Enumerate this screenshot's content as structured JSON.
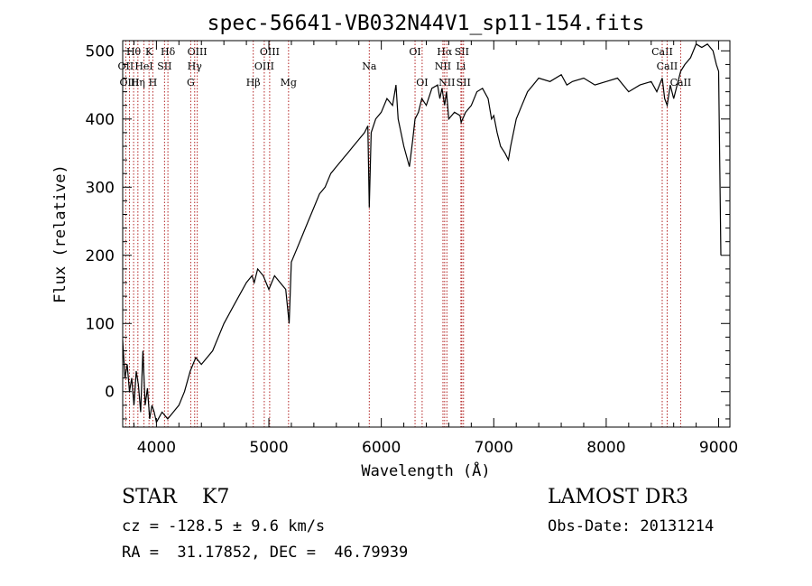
{
  "chart_data": {
    "type": "line",
    "title": "spec-56641-VB032N44V1_sp11-154.fits",
    "xlabel": "Wavelength (Å)",
    "ylabel": "Flux (relative)",
    "xlim": [
      3700,
      9100
    ],
    "ylim": [
      -52,
      515
    ],
    "xticks": [
      4000,
      5000,
      6000,
      7000,
      8000,
      9000
    ],
    "yticks": [
      0,
      100,
      200,
      300,
      400,
      500
    ],
    "grid": false,
    "series": [
      {
        "name": "flux",
        "x": [
          3700,
          3720,
          3740,
          3760,
          3780,
          3800,
          3820,
          3840,
          3860,
          3880,
          3900,
          3920,
          3940,
          3960,
          3980,
          4000,
          4050,
          4100,
          4150,
          4200,
          4250,
          4300,
          4350,
          4400,
          4500,
          4600,
          4700,
          4800,
          4850,
          4870,
          4900,
          4950,
          5000,
          5050,
          5100,
          5150,
          5180,
          5200,
          5250,
          5300,
          5350,
          5400,
          5450,
          5500,
          5550,
          5600,
          5650,
          5700,
          5750,
          5800,
          5850,
          5880,
          5893,
          5910,
          5950,
          6000,
          6050,
          6100,
          6130,
          6150,
          6200,
          6250,
          6280,
          6300,
          6330,
          6360,
          6400,
          6450,
          6500,
          6520,
          6540,
          6563,
          6580,
          6600,
          6650,
          6700,
          6710,
          6750,
          6800,
          6850,
          6900,
          6950,
          6980,
          7000,
          7030,
          7060,
          7100,
          7130,
          7150,
          7200,
          7250,
          7300,
          7350,
          7400,
          7500,
          7600,
          7650,
          7700,
          7800,
          7900,
          8000,
          8100,
          8200,
          8300,
          8400,
          8450,
          8498,
          8520,
          8542,
          8570,
          8600,
          8662,
          8700,
          8750,
          8800,
          8850,
          8900,
          8950,
          8980,
          9000,
          9020
        ],
        "values": [
          75,
          20,
          40,
          0,
          20,
          -20,
          30,
          10,
          -30,
          60,
          -20,
          5,
          -40,
          -20,
          -30,
          -45,
          -30,
          -40,
          -30,
          -20,
          0,
          30,
          50,
          40,
          60,
          100,
          130,
          160,
          170,
          160,
          180,
          170,
          150,
          170,
          160,
          150,
          100,
          190,
          210,
          230,
          250,
          270,
          290,
          300,
          320,
          330,
          340,
          350,
          360,
          370,
          380,
          390,
          270,
          380,
          400,
          410,
          430,
          420,
          450,
          400,
          360,
          330,
          370,
          400,
          410,
          430,
          420,
          445,
          450,
          430,
          445,
          420,
          440,
          400,
          410,
          405,
          395,
          410,
          420,
          440,
          445,
          430,
          400,
          405,
          380,
          360,
          350,
          340,
          360,
          400,
          420,
          440,
          450,
          460,
          455,
          465,
          450,
          455,
          460,
          450,
          455,
          460,
          440,
          450,
          455,
          440,
          460,
          430,
          420,
          450,
          430,
          470,
          480,
          490,
          510,
          505,
          510,
          500,
          480,
          470,
          200
        ]
      }
    ],
    "lines": [
      {
        "name": "Hθ",
        "x": 3797,
        "row": 1
      },
      {
        "name": "OII",
        "x": 3727,
        "row": 2
      },
      {
        "name": "OIII",
        "x": 3760,
        "row": 3
      },
      {
        "name": "K",
        "x": 3934,
        "row": 1
      },
      {
        "name": "HeI",
        "x": 3889,
        "row": 2
      },
      {
        "name": "Hη",
        "x": 3835,
        "row": 3
      },
      {
        "name": "H",
        "x": 3968,
        "row": 3
      },
      {
        "name": "SII",
        "x": 4072,
        "row": 2
      },
      {
        "name": "Hδ",
        "x": 4102,
        "row": 1
      },
      {
        "name": "OIII",
        "x": 4363,
        "row": 1
      },
      {
        "name": "Hγ",
        "x": 4340,
        "row": 2
      },
      {
        "name": "G",
        "x": 4305,
        "row": 3
      },
      {
        "name": "Hβ",
        "x": 4861,
        "row": 3
      },
      {
        "name": "OIII",
        "x": 4959,
        "row": 2
      },
      {
        "name": "OIII",
        "x": 5007,
        "row": 1
      },
      {
        "name": "Mg",
        "x": 5175,
        "row": 3
      },
      {
        "name": "Na",
        "x": 5893,
        "row": 2
      },
      {
        "name": "OI",
        "x": 6300,
        "row": 1
      },
      {
        "name": "OI",
        "x": 6363,
        "row": 3
      },
      {
        "name": "Hα",
        "x": 6563,
        "row": 1
      },
      {
        "name": "NII",
        "x": 6548,
        "row": 2
      },
      {
        "name": "NII",
        "x": 6583,
        "row": 3
      },
      {
        "name": "SII",
        "x": 6716,
        "row": 1
      },
      {
        "name": "Li",
        "x": 6708,
        "row": 2
      },
      {
        "name": "SII",
        "x": 6731,
        "row": 3
      },
      {
        "name": "CaII",
        "x": 8498,
        "row": 1
      },
      {
        "name": "CaII",
        "x": 8542,
        "row": 2
      },
      {
        "name": "CaII",
        "x": 8662,
        "row": 3
      }
    ]
  },
  "info": {
    "class_type": "STAR",
    "subclass": "K7",
    "cz_text": "cz = -128.5 ± 9.6 km/s",
    "radec_text": "RA =  31.17852, DEC =  46.79939",
    "survey": "LAMOST DR3",
    "obs_date": "Obs-Date: 20131214"
  },
  "colors": {
    "axis": "#000000",
    "line_marker": "#b22222",
    "spectrum": "#000000"
  }
}
